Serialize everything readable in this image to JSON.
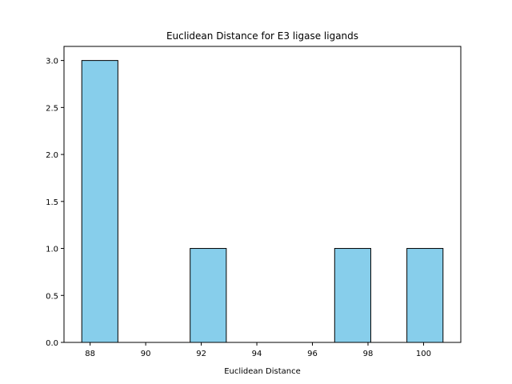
{
  "chart_data": {
    "type": "bar",
    "title": "Euclidean Distance for E3 ligase ligands",
    "xlabel": "Euclidean Distance",
    "ylabel": "",
    "bins": [
      {
        "start": 87.7,
        "end": 89.0,
        "count": 3
      },
      {
        "start": 89.0,
        "end": 90.3,
        "count": 0
      },
      {
        "start": 90.3,
        "end": 91.6,
        "count": 0
      },
      {
        "start": 91.6,
        "end": 92.9,
        "count": 1
      },
      {
        "start": 92.9,
        "end": 94.2,
        "count": 0
      },
      {
        "start": 94.2,
        "end": 95.5,
        "count": 0
      },
      {
        "start": 95.5,
        "end": 96.8,
        "count": 0
      },
      {
        "start": 96.8,
        "end": 98.1,
        "count": 1
      },
      {
        "start": 98.1,
        "end": 99.4,
        "count": 0
      },
      {
        "start": 99.4,
        "end": 100.7,
        "count": 1
      }
    ],
    "xlim": [
      87.06,
      101.34
    ],
    "ylim": [
      0,
      3.15
    ],
    "xticks": [
      "88",
      "90",
      "92",
      "94",
      "96",
      "98",
      "100"
    ],
    "yticks": [
      "0.0",
      "0.5",
      "1.0",
      "1.5",
      "2.0",
      "2.5",
      "3.0"
    ],
    "bar_color": "#87ceeb",
    "edge_color": "#000000",
    "grid": false
  }
}
